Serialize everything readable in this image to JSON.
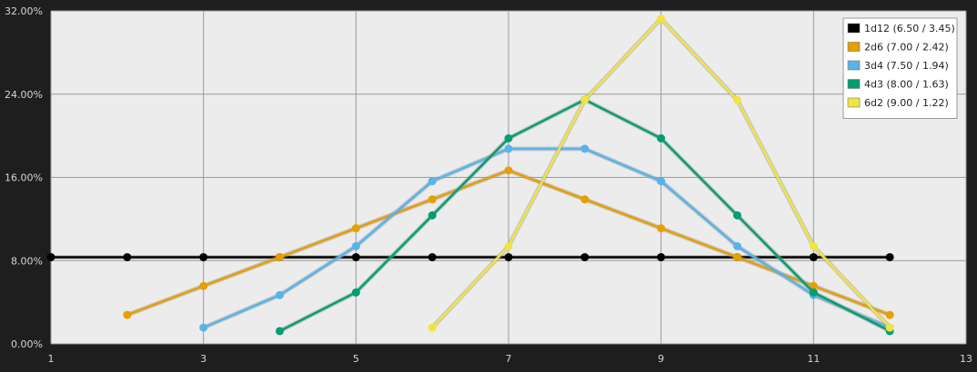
{
  "chart_data": {
    "type": "line",
    "title": "",
    "xlabel": "",
    "ylabel": "",
    "xlim": [
      1,
      13
    ],
    "ylim": [
      0,
      32
    ],
    "x_ticks": [
      1,
      3,
      5,
      7,
      9,
      11,
      13
    ],
    "y_ticks": [
      0,
      8,
      16,
      24,
      32
    ],
    "y_tick_labels": [
      "0.00%",
      "8.00%",
      "16.00%",
      "24.00%",
      "32.00%"
    ],
    "grid": true,
    "legend_position": "top-right",
    "series": [
      {
        "name": "1d12 (6.50 / 3.45)",
        "color": "#000000",
        "x": [
          1,
          2,
          3,
          4,
          5,
          6,
          7,
          8,
          9,
          10,
          11,
          12
        ],
        "values": [
          8.33,
          8.33,
          8.33,
          8.33,
          8.33,
          8.33,
          8.33,
          8.33,
          8.33,
          8.33,
          8.33,
          8.33
        ]
      },
      {
        "name": "2d6 (7.00 / 2.42)",
        "color": "#E69F00",
        "x": [
          2,
          3,
          4,
          5,
          6,
          7,
          8,
          9,
          10,
          11,
          12
        ],
        "values": [
          2.78,
          5.56,
          8.33,
          11.11,
          13.89,
          16.67,
          13.89,
          11.11,
          8.33,
          5.56,
          2.78
        ]
      },
      {
        "name": "3d4 (7.50 / 1.94)",
        "color": "#56B4E9",
        "x": [
          3,
          4,
          5,
          6,
          7,
          8,
          9,
          10,
          11,
          12
        ],
        "values": [
          1.56,
          4.69,
          9.38,
          15.63,
          18.75,
          18.75,
          15.63,
          9.38,
          4.69,
          1.56
        ]
      },
      {
        "name": "4d3 (8.00 / 1.63)",
        "color": "#009E73",
        "x": [
          4,
          5,
          6,
          7,
          8,
          9,
          10,
          11,
          12
        ],
        "values": [
          1.23,
          4.94,
          12.35,
          19.75,
          23.46,
          19.75,
          12.35,
          4.94,
          1.23
        ]
      },
      {
        "name": "6d2 (9.00 / 1.22)",
        "color": "#F0E442",
        "x": [
          6,
          7,
          8,
          9,
          10,
          11,
          12
        ],
        "values": [
          1.56,
          9.38,
          23.44,
          31.25,
          23.44,
          9.38,
          1.56
        ]
      }
    ]
  }
}
